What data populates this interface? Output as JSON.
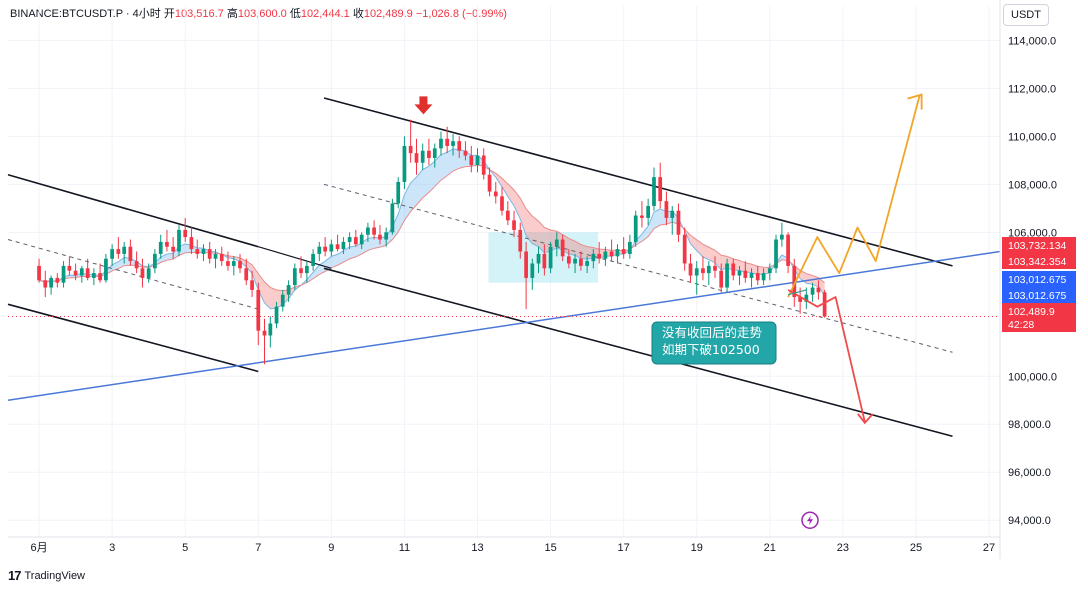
{
  "header": {
    "symbol": "BINANCE:BTCUSDT.P · 4小时",
    "open_label": "开",
    "open": "103,516.7",
    "high_label": "高",
    "high": "103,600.0",
    "low_label": "低",
    "low": "102,444.1",
    "close_label": "收",
    "close": "102,489.9",
    "change": "−1,026.8 (−0.99%)"
  },
  "currency": "USDT",
  "watermark": "TradingView",
  "note": {
    "line1": "没有收回后的走势",
    "line2": "如期下破102500"
  },
  "price_tags": [
    {
      "value": "103,732.134",
      "color": "#f23645"
    },
    {
      "value": "103,342.354",
      "color": "#f23645"
    },
    {
      "value": "103,012.675",
      "color": "#2962ff"
    },
    {
      "value": "103,012.675",
      "color": "#2962ff"
    },
    {
      "value": "102,489.9",
      "color": "#f23645"
    },
    {
      "value": "42:28",
      "color": "#f23645"
    }
  ],
  "chart_data": {
    "type": "candlestick",
    "y_ticks": [
      "114,000.0",
      "112,000.0",
      "110,000.0",
      "108,000.0",
      "106,000.0",
      "100,000.0",
      "98,000.0",
      "96,000.0",
      "94,000.0"
    ],
    "y_tick_values": [
      114000,
      112000,
      110000,
      108000,
      106000,
      100000,
      98000,
      96000,
      94000
    ],
    "x_ticks": [
      "6月",
      "3",
      "5",
      "7",
      "9",
      "11",
      "13",
      "15",
      "17",
      "19",
      "21",
      "23",
      "25",
      "27"
    ],
    "x_tick_days": [
      1,
      3,
      5,
      7,
      9,
      11,
      13,
      15,
      17,
      19,
      21,
      23,
      25,
      27
    ],
    "ylim": [
      93300,
      114600
    ],
    "xlim": [
      0.15,
      27.3
    ],
    "grid": true,
    "up_color": "#089981",
    "down_color": "#f23645",
    "candles": [
      {
        "t": 0.0,
        "o": 104600,
        "h": 104900,
        "l": 103900,
        "c": 104000
      },
      {
        "t": 0.17,
        "o": 104000,
        "h": 104400,
        "l": 103300,
        "c": 103700
      },
      {
        "t": 0.33,
        "o": 103700,
        "h": 104200,
        "l": 103400,
        "c": 104100
      },
      {
        "t": 0.5,
        "o": 104100,
        "h": 104300,
        "l": 103700,
        "c": 103900
      },
      {
        "t": 0.67,
        "o": 103900,
        "h": 104800,
        "l": 103700,
        "c": 104600
      },
      {
        "t": 0.83,
        "o": 104600,
        "h": 105000,
        "l": 104200,
        "c": 104400
      },
      {
        "t": 1.0,
        "o": 104400,
        "h": 104700,
        "l": 104000,
        "c": 104200
      },
      {
        "t": 1.17,
        "o": 104200,
        "h": 104600,
        "l": 103900,
        "c": 104500
      },
      {
        "t": 1.33,
        "o": 104500,
        "h": 104900,
        "l": 104000,
        "c": 104100
      },
      {
        "t": 1.5,
        "o": 104100,
        "h": 104500,
        "l": 103800,
        "c": 104300
      },
      {
        "t": 1.67,
        "o": 104300,
        "h": 104700,
        "l": 103900,
        "c": 104000
      },
      {
        "t": 1.83,
        "o": 104000,
        "h": 105100,
        "l": 103900,
        "c": 104900
      },
      {
        "t": 2.0,
        "o": 104900,
        "h": 105500,
        "l": 104600,
        "c": 105300
      },
      {
        "t": 2.17,
        "o": 105300,
        "h": 105800,
        "l": 104900,
        "c": 105100
      },
      {
        "t": 2.33,
        "o": 105100,
        "h": 105600,
        "l": 104700,
        "c": 105400
      },
      {
        "t": 2.5,
        "o": 105400,
        "h": 105700,
        "l": 104600,
        "c": 104800
      },
      {
        "t": 2.67,
        "o": 104800,
        "h": 105200,
        "l": 104300,
        "c": 104500
      },
      {
        "t": 2.83,
        "o": 104500,
        "h": 104900,
        "l": 103700,
        "c": 104100
      },
      {
        "t": 3.0,
        "o": 104100,
        "h": 104700,
        "l": 103900,
        "c": 104500
      },
      {
        "t": 3.17,
        "o": 104500,
        "h": 105300,
        "l": 104300,
        "c": 105100
      },
      {
        "t": 3.33,
        "o": 105100,
        "h": 105900,
        "l": 104900,
        "c": 105600
      },
      {
        "t": 3.5,
        "o": 105600,
        "h": 106100,
        "l": 105200,
        "c": 105400
      },
      {
        "t": 3.67,
        "o": 105400,
        "h": 105800,
        "l": 104900,
        "c": 105200
      },
      {
        "t": 3.83,
        "o": 105200,
        "h": 106300,
        "l": 105000,
        "c": 106100
      },
      {
        "t": 4.0,
        "o": 106100,
        "h": 106600,
        "l": 105600,
        "c": 105800
      },
      {
        "t": 4.17,
        "o": 105800,
        "h": 106200,
        "l": 105100,
        "c": 105300
      },
      {
        "t": 4.33,
        "o": 105300,
        "h": 105700,
        "l": 104900,
        "c": 105100
      },
      {
        "t": 4.5,
        "o": 105100,
        "h": 105500,
        "l": 104800,
        "c": 105300
      },
      {
        "t": 4.67,
        "o": 105300,
        "h": 105600,
        "l": 104700,
        "c": 104900
      },
      {
        "t": 4.83,
        "o": 104900,
        "h": 105300,
        "l": 104500,
        "c": 105100
      },
      {
        "t": 5.0,
        "o": 105100,
        "h": 105400,
        "l": 104600,
        "c": 104800
      },
      {
        "t": 5.17,
        "o": 104800,
        "h": 105200,
        "l": 104400,
        "c": 104600
      },
      {
        "t": 5.33,
        "o": 104600,
        "h": 105000,
        "l": 104200,
        "c": 104800
      },
      {
        "t": 5.5,
        "o": 104800,
        "h": 105100,
        "l": 104300,
        "c": 104500
      },
      {
        "t": 5.67,
        "o": 104500,
        "h": 104900,
        "l": 103800,
        "c": 104000
      },
      {
        "t": 5.83,
        "o": 104000,
        "h": 104400,
        "l": 103300,
        "c": 103600
      },
      {
        "t": 6.0,
        "o": 103600,
        "h": 103900,
        "l": 101300,
        "c": 101900
      },
      {
        "t": 6.17,
        "o": 101900,
        "h": 102400,
        "l": 100500,
        "c": 101700
      },
      {
        "t": 6.33,
        "o": 101700,
        "h": 102500,
        "l": 101200,
        "c": 102200
      },
      {
        "t": 6.5,
        "o": 102200,
        "h": 103100,
        "l": 102000,
        "c": 102900
      },
      {
        "t": 6.67,
        "o": 102900,
        "h": 103600,
        "l": 102700,
        "c": 103400
      },
      {
        "t": 6.83,
        "o": 103400,
        "h": 104000,
        "l": 103100,
        "c": 103800
      },
      {
        "t": 7.0,
        "o": 103800,
        "h": 104700,
        "l": 103600,
        "c": 104500
      },
      {
        "t": 7.17,
        "o": 104500,
        "h": 105000,
        "l": 104100,
        "c": 104300
      },
      {
        "t": 7.33,
        "o": 104300,
        "h": 104800,
        "l": 103900,
        "c": 104600
      },
      {
        "t": 7.5,
        "o": 104600,
        "h": 105300,
        "l": 104400,
        "c": 105100
      },
      {
        "t": 7.67,
        "o": 105100,
        "h": 105600,
        "l": 104800,
        "c": 105400
      },
      {
        "t": 7.83,
        "o": 105400,
        "h": 105800,
        "l": 105000,
        "c": 105200
      },
      {
        "t": 8.0,
        "o": 105200,
        "h": 105700,
        "l": 105000,
        "c": 105500
      },
      {
        "t": 8.17,
        "o": 105500,
        "h": 105900,
        "l": 105200,
        "c": 105300
      },
      {
        "t": 8.33,
        "o": 105300,
        "h": 105800,
        "l": 105100,
        "c": 105600
      },
      {
        "t": 8.5,
        "o": 105600,
        "h": 106000,
        "l": 105300,
        "c": 105800
      },
      {
        "t": 8.67,
        "o": 105800,
        "h": 106100,
        "l": 105400,
        "c": 105500
      },
      {
        "t": 8.83,
        "o": 105500,
        "h": 106000,
        "l": 105300,
        "c": 105900
      },
      {
        "t": 9.0,
        "o": 105900,
        "h": 106400,
        "l": 105600,
        "c": 106200
      },
      {
        "t": 9.17,
        "o": 106200,
        "h": 106500,
        "l": 105700,
        "c": 105900
      },
      {
        "t": 9.33,
        "o": 105900,
        "h": 106300,
        "l": 105500,
        "c": 105700
      },
      {
        "t": 9.5,
        "o": 105700,
        "h": 106200,
        "l": 105400,
        "c": 106000
      },
      {
        "t": 9.67,
        "o": 106000,
        "h": 107400,
        "l": 105900,
        "c": 107200
      },
      {
        "t": 9.83,
        "o": 107200,
        "h": 108300,
        "l": 107000,
        "c": 108100
      },
      {
        "t": 10.0,
        "o": 108100,
        "h": 110000,
        "l": 107800,
        "c": 109600
      },
      {
        "t": 10.17,
        "o": 109600,
        "h": 110700,
        "l": 108900,
        "c": 109300
      },
      {
        "t": 10.33,
        "o": 109300,
        "h": 109900,
        "l": 108400,
        "c": 108900
      },
      {
        "t": 10.5,
        "o": 108900,
        "h": 109700,
        "l": 108600,
        "c": 109400
      },
      {
        "t": 10.67,
        "o": 109400,
        "h": 109900,
        "l": 108800,
        "c": 109100
      },
      {
        "t": 10.83,
        "o": 109100,
        "h": 109700,
        "l": 108700,
        "c": 109500
      },
      {
        "t": 11.0,
        "o": 109500,
        "h": 110200,
        "l": 109200,
        "c": 109900
      },
      {
        "t": 11.17,
        "o": 109900,
        "h": 110400,
        "l": 109300,
        "c": 109600
      },
      {
        "t": 11.33,
        "o": 109600,
        "h": 110100,
        "l": 109200,
        "c": 109800
      },
      {
        "t": 11.5,
        "o": 109800,
        "h": 110000,
        "l": 109100,
        "c": 109400
      },
      {
        "t": 11.67,
        "o": 109400,
        "h": 109800,
        "l": 109000,
        "c": 109200
      },
      {
        "t": 11.83,
        "o": 109200,
        "h": 109600,
        "l": 108500,
        "c": 108800
      },
      {
        "t": 12.0,
        "o": 108800,
        "h": 109500,
        "l": 108500,
        "c": 109200
      },
      {
        "t": 12.17,
        "o": 109200,
        "h": 109500,
        "l": 108200,
        "c": 108400
      },
      {
        "t": 12.33,
        "o": 108400,
        "h": 108700,
        "l": 107500,
        "c": 107700
      },
      {
        "t": 12.5,
        "o": 107700,
        "h": 108100,
        "l": 107200,
        "c": 107500
      },
      {
        "t": 12.67,
        "o": 107500,
        "h": 107900,
        "l": 106700,
        "c": 106900
      },
      {
        "t": 12.83,
        "o": 106900,
        "h": 107300,
        "l": 106300,
        "c": 106500
      },
      {
        "t": 13.0,
        "o": 106500,
        "h": 106900,
        "l": 105800,
        "c": 106100
      },
      {
        "t": 13.17,
        "o": 106100,
        "h": 106400,
        "l": 104900,
        "c": 105200
      },
      {
        "t": 13.33,
        "o": 105200,
        "h": 105600,
        "l": 102800,
        "c": 104100
      },
      {
        "t": 13.5,
        "o": 104100,
        "h": 104900,
        "l": 103600,
        "c": 104700
      },
      {
        "t": 13.67,
        "o": 104700,
        "h": 105400,
        "l": 104300,
        "c": 105100
      },
      {
        "t": 13.83,
        "o": 105100,
        "h": 105500,
        "l": 104200,
        "c": 104500
      },
      {
        "t": 14.0,
        "o": 104500,
        "h": 105600,
        "l": 104300,
        "c": 105400
      },
      {
        "t": 14.17,
        "o": 105400,
        "h": 106000,
        "l": 105000,
        "c": 105700
      },
      {
        "t": 14.33,
        "o": 105700,
        "h": 105900,
        "l": 104800,
        "c": 105000
      },
      {
        "t": 14.5,
        "o": 105000,
        "h": 105300,
        "l": 104500,
        "c": 104700
      },
      {
        "t": 14.67,
        "o": 104700,
        "h": 105100,
        "l": 104300,
        "c": 104900
      },
      {
        "t": 14.83,
        "o": 104900,
        "h": 105200,
        "l": 104400,
        "c": 104600
      },
      {
        "t": 15.0,
        "o": 104600,
        "h": 105000,
        "l": 104300,
        "c": 104800
      },
      {
        "t": 15.17,
        "o": 104800,
        "h": 105300,
        "l": 104500,
        "c": 105100
      },
      {
        "t": 15.33,
        "o": 105100,
        "h": 105600,
        "l": 104700,
        "c": 104900
      },
      {
        "t": 15.5,
        "o": 104900,
        "h": 105400,
        "l": 104600,
        "c": 105200
      },
      {
        "t": 15.67,
        "o": 105200,
        "h": 105700,
        "l": 104800,
        "c": 105000
      },
      {
        "t": 15.83,
        "o": 105000,
        "h": 105500,
        "l": 104700,
        "c": 105300
      },
      {
        "t": 16.0,
        "o": 105300,
        "h": 105800,
        "l": 104900,
        "c": 105100
      },
      {
        "t": 16.17,
        "o": 105100,
        "h": 105900,
        "l": 104900,
        "c": 105600
      },
      {
        "t": 16.33,
        "o": 105600,
        "h": 106900,
        "l": 105400,
        "c": 106700
      },
      {
        "t": 16.5,
        "o": 106700,
        "h": 107300,
        "l": 106200,
        "c": 106600
      },
      {
        "t": 16.67,
        "o": 106600,
        "h": 107400,
        "l": 106300,
        "c": 107100
      },
      {
        "t": 16.83,
        "o": 107100,
        "h": 108700,
        "l": 106900,
        "c": 108300
      },
      {
        "t": 17.0,
        "o": 108300,
        "h": 108900,
        "l": 107000,
        "c": 107300
      },
      {
        "t": 17.17,
        "o": 107300,
        "h": 107700,
        "l": 106300,
        "c": 106600
      },
      {
        "t": 17.33,
        "o": 106600,
        "h": 107100,
        "l": 105900,
        "c": 106900
      },
      {
        "t": 17.5,
        "o": 106900,
        "h": 107200,
        "l": 105600,
        "c": 105900
      },
      {
        "t": 17.67,
        "o": 105900,
        "h": 106200,
        "l": 104400,
        "c": 104700
      },
      {
        "t": 17.83,
        "o": 104700,
        "h": 105100,
        "l": 103900,
        "c": 104200
      },
      {
        "t": 18.0,
        "o": 104200,
        "h": 104800,
        "l": 103400,
        "c": 104500
      },
      {
        "t": 18.17,
        "o": 104500,
        "h": 105000,
        "l": 104000,
        "c": 104300
      },
      {
        "t": 18.33,
        "o": 104300,
        "h": 104800,
        "l": 103800,
        "c": 104600
      },
      {
        "t": 18.5,
        "o": 104600,
        "h": 105000,
        "l": 104100,
        "c": 104400
      },
      {
        "t": 18.67,
        "o": 104400,
        "h": 104700,
        "l": 103500,
        "c": 103700
      },
      {
        "t": 18.83,
        "o": 103700,
        "h": 104900,
        "l": 103500,
        "c": 104700
      },
      {
        "t": 19.0,
        "o": 104700,
        "h": 104900,
        "l": 104000,
        "c": 104200
      },
      {
        "t": 19.17,
        "o": 104200,
        "h": 104600,
        "l": 103800,
        "c": 104400
      },
      {
        "t": 19.33,
        "o": 104400,
        "h": 104800,
        "l": 103900,
        "c": 104100
      },
      {
        "t": 19.5,
        "o": 104100,
        "h": 104500,
        "l": 103700,
        "c": 104300
      },
      {
        "t": 19.67,
        "o": 104300,
        "h": 104600,
        "l": 103800,
        "c": 104000
      },
      {
        "t": 19.83,
        "o": 104000,
        "h": 104500,
        "l": 103800,
        "c": 104300
      },
      {
        "t": 20.0,
        "o": 104300,
        "h": 104700,
        "l": 104000,
        "c": 104500
      },
      {
        "t": 20.17,
        "o": 104500,
        "h": 105900,
        "l": 104300,
        "c": 105700
      },
      {
        "t": 20.33,
        "o": 105700,
        "h": 106400,
        "l": 105400,
        "c": 105900
      },
      {
        "t": 20.5,
        "o": 105900,
        "h": 106000,
        "l": 104300,
        "c": 104600
      },
      {
        "t": 20.67,
        "o": 104600,
        "h": 104900,
        "l": 102900,
        "c": 103300
      },
      {
        "t": 20.83,
        "o": 103300,
        "h": 103700,
        "l": 102600,
        "c": 103100
      },
      {
        "t": 21.0,
        "o": 103100,
        "h": 103700,
        "l": 102800,
        "c": 103400
      },
      {
        "t": 21.17,
        "o": 103400,
        "h": 103900,
        "l": 103100,
        "c": 103700
      },
      {
        "t": 21.33,
        "o": 103700,
        "h": 104000,
        "l": 103200,
        "c": 103500
      },
      {
        "t": 21.5,
        "o": 103500,
        "h": 103600,
        "l": 102444,
        "c": 102490
      }
    ]
  }
}
